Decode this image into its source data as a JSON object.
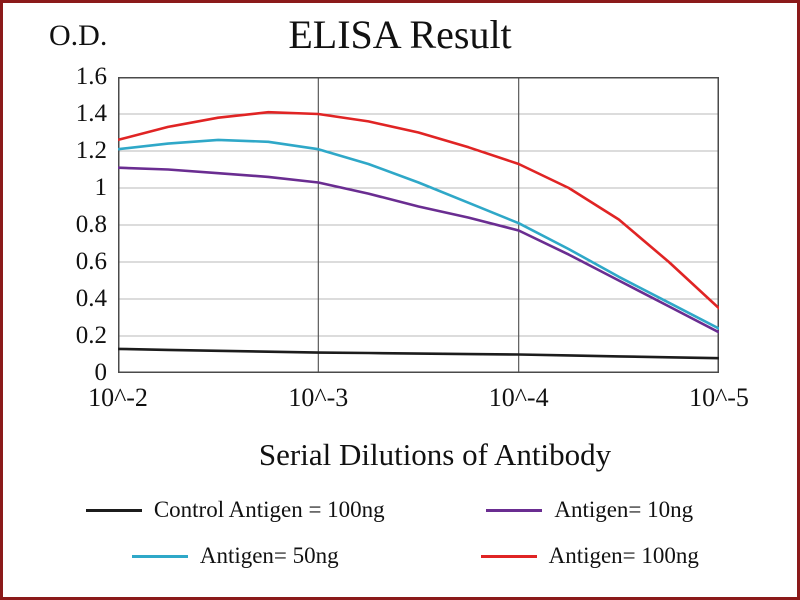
{
  "figure": {
    "border_color": "#8b1a1a",
    "background": "#ffffff"
  },
  "chart_data": {
    "type": "line",
    "title": "ELISA Result",
    "ylabel": "O.D.",
    "xlabel": "Serial Dilutions  of Antibody",
    "xlim": [
      -2,
      -5
    ],
    "ylim": [
      0,
      1.6
    ],
    "grid": true,
    "legend_position": "bottom",
    "x_tick_labels": [
      "10^-2",
      "10^-3",
      "10^-4",
      "10^-5"
    ],
    "x_tick_positions": [
      -2,
      -3,
      -4,
      -5
    ],
    "y_ticks": [
      0,
      0.2,
      0.4,
      0.6,
      0.8,
      1,
      1.2,
      1.4,
      1.6
    ],
    "y_tick_labels": [
      "0",
      "0.2",
      "0.4",
      "0.6",
      "0.8",
      "1",
      "1.2",
      "1.4",
      "1.6"
    ],
    "x": [
      -2,
      -2.25,
      -2.5,
      -2.75,
      -3,
      -3.25,
      -3.5,
      -3.75,
      -4,
      -4.25,
      -4.5,
      -4.75,
      -5
    ],
    "series": [
      {
        "name": "Control Antigen = 100ng",
        "color": "#1c1c1c",
        "values": [
          0.13,
          0.125,
          0.12,
          0.115,
          0.11,
          0.108,
          0.105,
          0.102,
          0.1,
          0.095,
          0.09,
          0.085,
          0.08
        ]
      },
      {
        "name": "Antigen= 10ng",
        "color": "#6a2d91",
        "values": [
          1.11,
          1.1,
          1.08,
          1.06,
          1.03,
          0.97,
          0.9,
          0.84,
          0.77,
          0.64,
          0.5,
          0.36,
          0.22
        ]
      },
      {
        "name": "Antigen= 50ng",
        "color": "#2fa8c8",
        "values": [
          1.21,
          1.24,
          1.26,
          1.25,
          1.21,
          1.13,
          1.03,
          0.92,
          0.81,
          0.67,
          0.52,
          0.38,
          0.24
        ]
      },
      {
        "name": "Antigen= 100ng",
        "color": "#e02424",
        "values": [
          1.26,
          1.33,
          1.38,
          1.41,
          1.4,
          1.36,
          1.3,
          1.22,
          1.13,
          1.0,
          0.83,
          0.6,
          0.35
        ]
      }
    ],
    "legend_order": [
      0,
      1,
      2,
      3
    ],
    "colors": {
      "frame": "#4a4a4a",
      "grid_major": "#5a5a5a",
      "grid_minor": "#b8b8b8"
    }
  }
}
